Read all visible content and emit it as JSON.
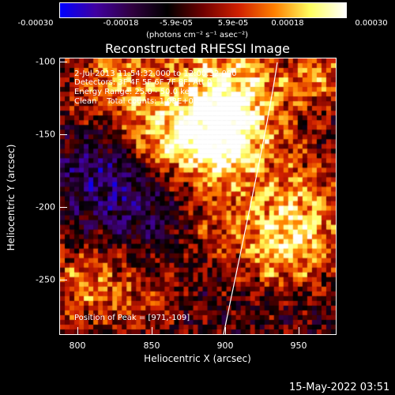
{
  "colorbar": {
    "ticks": [
      "-0.00030",
      "-0.00018",
      "-5.9e-05",
      "5.9e-05",
      "0.00018",
      "0.00030"
    ],
    "unit": "(photons cm⁻² s⁻¹ asec⁻²)"
  },
  "title": "Reconstructed RHESSI Image",
  "annotations": {
    "time": "2-Jul-2013 11:54:32.000 to 12:00:32.000",
    "detectors": "Detectors: 3F 4F 5F 6F 7F 8F, Att 0",
    "energy": "Energy Range: 25.0 - 50.0 keV",
    "clean": "Clean    Total counts: 1.08E+04",
    "peak": "Position of Peak = [971,-109]"
  },
  "axes": {
    "xlabel": "Heliocentric X (arcsec)",
    "ylabel": "Heliocentric Y (arcsec)",
    "xticks": [
      "800",
      "850",
      "900",
      "950"
    ],
    "yticks": [
      "-100",
      "-150",
      "-200",
      "-250"
    ]
  },
  "footer": {
    "timestamp": "15-May-2022 03:51"
  },
  "colors": {
    "background": "#000000",
    "colormap": [
      "#0000ff",
      "#4000a0",
      "#300040",
      "#000000",
      "#700000",
      "#d02000",
      "#ff8000",
      "#ffff60",
      "#ffffff"
    ]
  }
}
